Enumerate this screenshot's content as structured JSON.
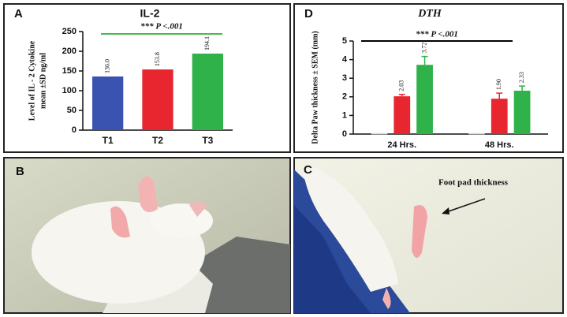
{
  "chart_data": [
    {
      "type": "bar",
      "panel": "A",
      "title": "IL-2",
      "ylabel": [
        "Level of IL - 2 Cytokine",
        "mean ±SD ng/ml"
      ],
      "annotation": "*** P <.001",
      "annotation_color": "#4cb84c",
      "categories": [
        "T1",
        "T2",
        "T3"
      ],
      "values": [
        136.0,
        153.8,
        194.1
      ],
      "value_labels": [
        "136.0",
        "153.8",
        "194.1"
      ],
      "colors": [
        "#3a52b0",
        "#e8262f",
        "#2fb24a"
      ],
      "ylim": [
        0,
        250
      ],
      "yticks": [
        0,
        50,
        100,
        150,
        200,
        250
      ]
    },
    {
      "type": "grouped-bar",
      "panel": "D",
      "title": "DTH",
      "ylabel": [
        "Delta Paw thickness ± SEM (mm)"
      ],
      "annotation": "*** P <.001",
      "annotation_color": "#000000",
      "categories": [
        "24 Hrs.",
        "48 Hrs."
      ],
      "series": [
        {
          "color": "#d9d9d9",
          "values": [
            0.05,
            0.05
          ],
          "errors": [
            0,
            0
          ]
        },
        {
          "color": "#e8262f",
          "values": [
            2.03,
            1.9
          ],
          "value_labels": [
            "2.03",
            "1.90"
          ],
          "errors": [
            0.1,
            0.3
          ]
        },
        {
          "color": "#2fb24a",
          "values": [
            3.72,
            2.33
          ],
          "value_labels": [
            "3.72",
            "2.33"
          ],
          "errors": [
            0.45,
            0.25
          ]
        }
      ],
      "ylim": [
        0,
        5
      ],
      "yticks": [
        0,
        1,
        2,
        3,
        4,
        5
      ]
    }
  ],
  "photos": [
    {
      "panel": "B"
    },
    {
      "panel": "C",
      "annotation": "Foot pad thickness"
    }
  ]
}
